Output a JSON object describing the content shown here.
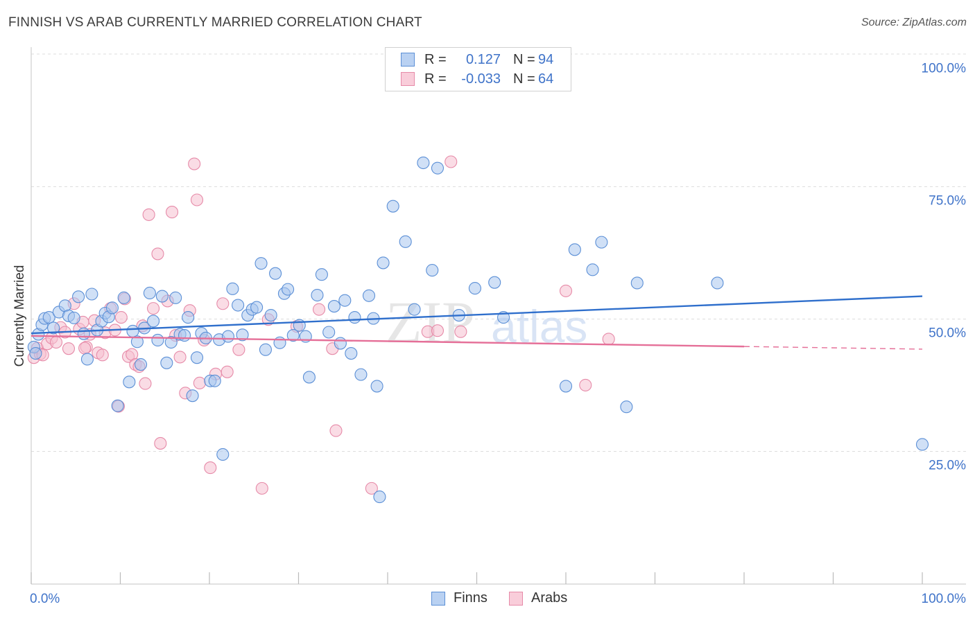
{
  "header": {
    "title": "FINNISH VS ARAB CURRENTLY MARRIED CORRELATION CHART",
    "source": "Source: ZipAtlas.com"
  },
  "legend": {
    "finns": {
      "r_label": "R =",
      "r_value": "0.127",
      "n_label": "N =",
      "n_value": "94"
    },
    "arabs": {
      "r_label": "R =",
      "r_value": "-0.033",
      "n_label": "N =",
      "n_value": "64"
    }
  },
  "bottom_legend": {
    "finns": "Finns",
    "arabs": "Arabs"
  },
  "watermark": "ZIPatlas",
  "colors": {
    "finns_fill": "#a9c6ef",
    "finns_stroke": "#5b8fd6",
    "finns_line": "#2f6fcc",
    "arabs_fill": "#f6bfd0",
    "arabs_stroke": "#e68aa8",
    "arabs_line": "#e56f98",
    "tick_label": "#3f73c9",
    "grid": "#dddddd"
  },
  "chart_data": {
    "type": "scatter",
    "title": "FINNISH VS ARAB CURRENTLY MARRIED CORRELATION CHART",
    "xlabel": "",
    "ylabel": "Currently Married",
    "xlim": [
      0,
      100
    ],
    "ylim": [
      3,
      105
    ],
    "x_tick_labels": [
      "0.0%",
      "100.0%"
    ],
    "y_ticks": [
      25,
      50,
      75,
      100
    ],
    "y_tick_labels": [
      "25.0%",
      "50.0%",
      "75.0%",
      "100.0%"
    ],
    "grid": true,
    "legend_position": "top-center",
    "series": [
      {
        "name": "Finns",
        "r": 0.127,
        "n": 94,
        "trend": {
          "x": [
            0,
            100
          ],
          "y": [
            49.8,
            56.8
          ]
        },
        "points": [
          [
            0.3,
            47.2
          ],
          [
            0.5,
            46.0
          ],
          [
            0.8,
            49.6
          ],
          [
            1.2,
            51.4
          ],
          [
            1.5,
            52.6
          ],
          [
            2.0,
            52.8
          ],
          [
            2.5,
            50.8
          ],
          [
            3.1,
            53.8
          ],
          [
            3.8,
            55.0
          ],
          [
            4.2,
            53.1
          ],
          [
            4.8,
            52.7
          ],
          [
            5.3,
            56.7
          ],
          [
            5.9,
            49.7
          ],
          [
            6.3,
            44.9
          ],
          [
            6.8,
            57.2
          ],
          [
            7.4,
            50.4
          ],
          [
            7.9,
            52.1
          ],
          [
            8.3,
            53.6
          ],
          [
            8.7,
            52.9
          ],
          [
            9.1,
            54.6
          ],
          [
            9.7,
            36.1
          ],
          [
            10.4,
            56.5
          ],
          [
            11.0,
            40.6
          ],
          [
            11.4,
            50.2
          ],
          [
            11.9,
            48.2
          ],
          [
            12.3,
            43.9
          ],
          [
            12.7,
            50.8
          ],
          [
            13.3,
            57.4
          ],
          [
            13.7,
            52.1
          ],
          [
            14.2,
            48.5
          ],
          [
            14.7,
            56.8
          ],
          [
            15.2,
            44.2
          ],
          [
            15.7,
            48.1
          ],
          [
            16.2,
            56.5
          ],
          [
            16.7,
            49.6
          ],
          [
            17.2,
            49.4
          ],
          [
            17.6,
            52.8
          ],
          [
            18.1,
            38.0
          ],
          [
            18.6,
            45.2
          ],
          [
            19.1,
            49.8
          ],
          [
            19.6,
            48.9
          ],
          [
            20.1,
            40.8
          ],
          [
            20.6,
            40.8
          ],
          [
            21.1,
            48.6
          ],
          [
            21.5,
            26.9
          ],
          [
            22.1,
            49.2
          ],
          [
            22.6,
            58.2
          ],
          [
            23.2,
            55.1
          ],
          [
            23.7,
            49.5
          ],
          [
            24.3,
            53.2
          ],
          [
            24.8,
            54.3
          ],
          [
            25.3,
            54.7
          ],
          [
            25.8,
            63.0
          ],
          [
            26.3,
            46.7
          ],
          [
            26.9,
            53.2
          ],
          [
            27.4,
            61.1
          ],
          [
            27.9,
            48.0
          ],
          [
            28.4,
            57.3
          ],
          [
            28.8,
            58.1
          ],
          [
            29.4,
            49.4
          ],
          [
            30.1,
            51.3
          ],
          [
            30.8,
            49.2
          ],
          [
            31.2,
            41.5
          ],
          [
            32.1,
            57.0
          ],
          [
            32.6,
            60.9
          ],
          [
            33.4,
            50.0
          ],
          [
            34.0,
            54.9
          ],
          [
            34.7,
            47.9
          ],
          [
            35.2,
            56.0
          ],
          [
            35.9,
            46.0
          ],
          [
            36.3,
            52.8
          ],
          [
            37.0,
            42.0
          ],
          [
            37.9,
            56.9
          ],
          [
            38.4,
            52.6
          ],
          [
            38.8,
            39.8
          ],
          [
            39.1,
            18.9
          ],
          [
            39.5,
            63.1
          ],
          [
            40.6,
            73.8
          ],
          [
            42.0,
            67.1
          ],
          [
            43.0,
            54.3
          ],
          [
            44.0,
            82.0
          ],
          [
            45.0,
            61.7
          ],
          [
            45.6,
            81.0
          ],
          [
            48.0,
            53.2
          ],
          [
            49.8,
            58.3
          ],
          [
            52.0,
            59.4
          ],
          [
            53.0,
            52.8
          ],
          [
            60.0,
            39.8
          ],
          [
            61.0,
            65.6
          ],
          [
            63.0,
            61.8
          ],
          [
            64.0,
            67.0
          ],
          [
            66.8,
            35.9
          ],
          [
            68.0,
            59.3
          ],
          [
            77.0,
            59.3
          ],
          [
            100.0,
            28.8
          ]
        ]
      },
      {
        "name": "Arabs",
        "r": -0.033,
        "n": 64,
        "trend": {
          "x": [
            0,
            80
          ],
          "y": [
            49.3,
            47.3
          ]
        },
        "trend_dashed": {
          "x": [
            80,
            100
          ],
          "y": [
            47.3,
            46.8
          ]
        },
        "points": [
          [
            0.3,
            45.2
          ],
          [
            0.7,
            47.0
          ],
          [
            1.0,
            45.9
          ],
          [
            1.3,
            45.7
          ],
          [
            1.8,
            47.8
          ],
          [
            2.3,
            48.9
          ],
          [
            2.8,
            48.1
          ],
          [
            3.3,
            50.9
          ],
          [
            3.8,
            50.0
          ],
          [
            4.2,
            46.9
          ],
          [
            4.8,
            55.4
          ],
          [
            5.4,
            50.6
          ],
          [
            5.8,
            51.9
          ],
          [
            6.2,
            47.2
          ],
          [
            6.6,
            49.6
          ],
          [
            7.1,
            52.2
          ],
          [
            7.5,
            46.1
          ],
          [
            8.0,
            45.7
          ],
          [
            8.3,
            49.9
          ],
          [
            8.9,
            54.5
          ],
          [
            9.4,
            50.4
          ],
          [
            9.8,
            36.0
          ],
          [
            10.1,
            52.8
          ],
          [
            10.5,
            56.3
          ],
          [
            10.9,
            45.4
          ],
          [
            11.3,
            45.8
          ],
          [
            11.7,
            43.9
          ],
          [
            12.1,
            43.5
          ],
          [
            12.5,
            51.2
          ],
          [
            12.8,
            40.3
          ],
          [
            13.2,
            72.2
          ],
          [
            13.7,
            54.5
          ],
          [
            14.2,
            64.8
          ],
          [
            14.5,
            29.0
          ],
          [
            15.3,
            55.9
          ],
          [
            15.8,
            72.7
          ],
          [
            16.2,
            49.4
          ],
          [
            16.7,
            45.3
          ],
          [
            17.3,
            38.5
          ],
          [
            17.8,
            54.1
          ],
          [
            18.3,
            81.8
          ],
          [
            18.6,
            75.0
          ],
          [
            18.9,
            40.4
          ],
          [
            19.4,
            48.5
          ],
          [
            20.1,
            24.4
          ],
          [
            20.7,
            42.1
          ],
          [
            21.5,
            55.4
          ],
          [
            22.0,
            42.5
          ],
          [
            23.3,
            46.7
          ],
          [
            25.9,
            20.5
          ],
          [
            26.6,
            52.4
          ],
          [
            29.8,
            51.1
          ],
          [
            32.3,
            54.3
          ],
          [
            33.8,
            46.9
          ],
          [
            34.2,
            31.4
          ],
          [
            38.2,
            20.5
          ],
          [
            44.5,
            50.1
          ],
          [
            45.6,
            50.3
          ],
          [
            47.1,
            82.2
          ],
          [
            48.2,
            50.1
          ],
          [
            60.0,
            57.8
          ],
          [
            62.2,
            40.0
          ],
          [
            64.8,
            48.7
          ],
          [
            6.0,
            47.0
          ]
        ]
      }
    ]
  }
}
